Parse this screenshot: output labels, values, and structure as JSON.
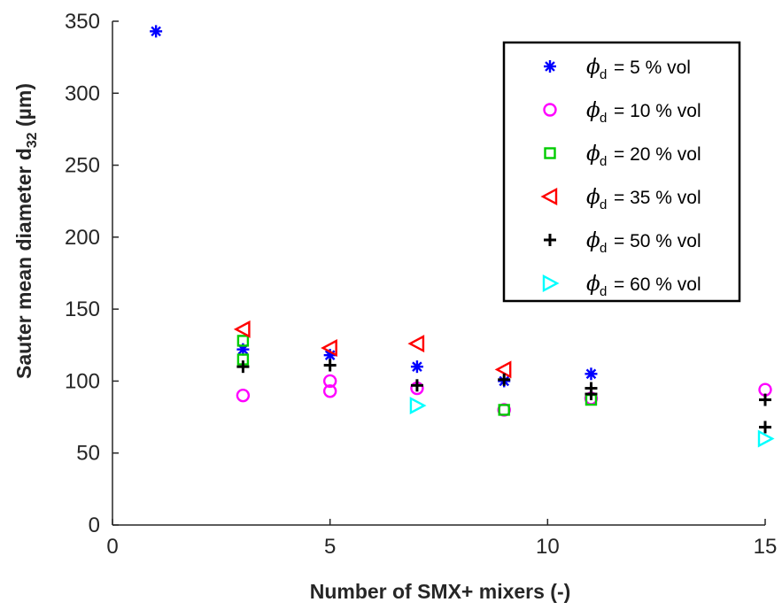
{
  "chart_data": {
    "type": "scatter",
    "xlabel": "Number of SMX+ mixers (-)",
    "ylabel_main": "Sauter mean diameter d",
    "ylabel_sub": "32",
    "ylabel_unit": " (µm)",
    "xlim": [
      0,
      15
    ],
    "ylim": [
      0,
      350
    ],
    "x_ticks": [
      0,
      5,
      10,
      15
    ],
    "y_ticks": [
      0,
      50,
      100,
      150,
      200,
      250,
      300,
      350
    ],
    "x_tick_labels": [
      "0",
      "5",
      "10",
      "15"
    ],
    "y_tick_labels": [
      "0",
      "50",
      "100",
      "150",
      "200",
      "250",
      "300",
      "350"
    ],
    "grid": false,
    "legend_position": "top-right",
    "series": [
      {
        "name": "5 % vol",
        "marker": "asterisk",
        "color": "#0000FF",
        "points": [
          [
            1,
            343
          ],
          [
            3,
            122
          ],
          [
            5,
            118
          ],
          [
            7,
            110
          ],
          [
            9,
            100
          ],
          [
            11,
            105
          ]
        ]
      },
      {
        "name": "10 % vol",
        "marker": "circle",
        "color": "#FF00FF",
        "points": [
          [
            3,
            90
          ],
          [
            5,
            100
          ],
          [
            5,
            93
          ],
          [
            7,
            95
          ],
          [
            9,
            80
          ],
          [
            11,
            88
          ],
          [
            15,
            94
          ]
        ]
      },
      {
        "name": "20 % vol",
        "marker": "square",
        "color": "#00CC00",
        "points": [
          [
            3,
            128
          ],
          [
            3,
            115
          ],
          [
            9,
            80
          ],
          [
            11,
            87
          ]
        ]
      },
      {
        "name": "35 % vol",
        "marker": "triangle-left",
        "color": "#FF0000",
        "points": [
          [
            3,
            136
          ],
          [
            5,
            123
          ],
          [
            7,
            126
          ],
          [
            9,
            108
          ]
        ]
      },
      {
        "name": "50 % vol",
        "marker": "plus",
        "color": "#000000",
        "points": [
          [
            3,
            110
          ],
          [
            5,
            111
          ],
          [
            7,
            97
          ],
          [
            9,
            101
          ],
          [
            11,
            95
          ],
          [
            11,
            91
          ],
          [
            15,
            87
          ],
          [
            15,
            68
          ]
        ]
      },
      {
        "name": "60 % vol",
        "marker": "triangle-right",
        "color": "#00FFFF",
        "points": [
          [
            7,
            83
          ],
          [
            15,
            60
          ]
        ]
      }
    ],
    "legend_labels": [
      "= 5 % vol",
      "= 10 % vol",
      "= 20 % vol",
      "= 35 % vol",
      "= 50 % vol",
      "= 60 % vol"
    ],
    "legend_symbol": "ϕ",
    "legend_sub": "d"
  }
}
